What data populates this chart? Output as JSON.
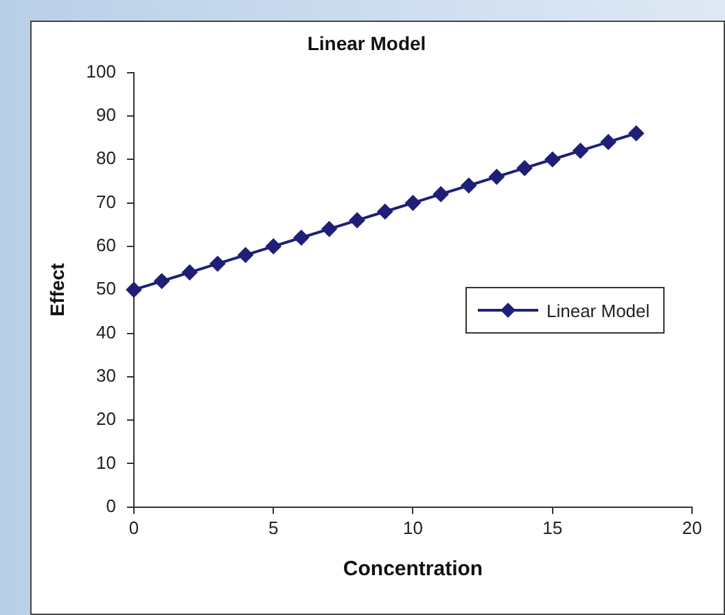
{
  "chart_data": {
    "type": "line",
    "title": "Linear Model",
    "xlabel": "Concentration",
    "ylabel": "Effect",
    "x": [
      0,
      1,
      2,
      3,
      4,
      5,
      6,
      7,
      8,
      9,
      10,
      11,
      12,
      13,
      14,
      15,
      16,
      17,
      18
    ],
    "series": [
      {
        "name": "Linear Model",
        "color": "#1f1f78",
        "values": [
          50,
          52,
          54,
          56,
          58,
          60,
          62,
          64,
          66,
          68,
          70,
          72,
          74,
          76,
          78,
          80,
          82,
          84,
          86
        ]
      }
    ],
    "xlim": [
      0,
      20
    ],
    "xticks": [
      0,
      5,
      10,
      15,
      20
    ],
    "ylim": [
      0,
      100
    ],
    "yticks": [
      0,
      10,
      20,
      30,
      40,
      50,
      60,
      70,
      80,
      90,
      100
    ],
    "grid": false,
    "legend": "right",
    "marker": "diamond",
    "line_style": "solid"
  }
}
